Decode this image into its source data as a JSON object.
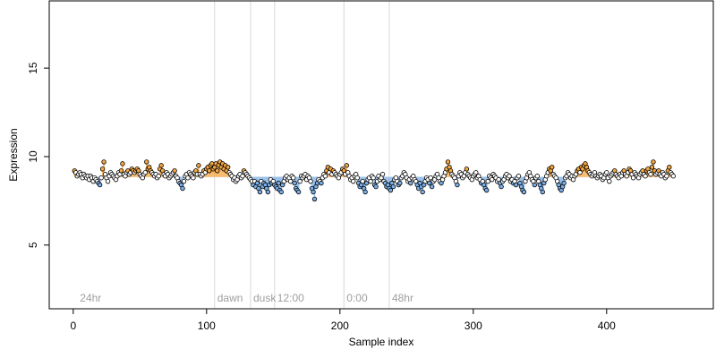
{
  "chart_data": {
    "type": "scatter",
    "xlabel": "Sample index",
    "ylabel": "Expression",
    "xlim": [
      -18,
      480
    ],
    "ylim": [
      1.4,
      18.8
    ],
    "x_ticks": [
      0,
      100,
      200,
      300,
      400
    ],
    "y_ticks": [
      5,
      10,
      15
    ],
    "baseline": 8.85,
    "colors": {
      "above": "#f5a742",
      "below": "#7aaee6",
      "neutral": "#ffffff",
      "point_stroke": "#000000",
      "vline": "#d8d8d8",
      "annotation": "#9e9e9e"
    },
    "annotations": [
      {
        "label": "24hr",
        "x": 3,
        "line": false
      },
      {
        "label": "dawn",
        "x": 106,
        "line": true
      },
      {
        "label": "dusk",
        "x": 133,
        "line": true
      },
      {
        "label": "12:00",
        "x": 151,
        "line": true
      },
      {
        "label": "0:00",
        "x": 203,
        "line": true
      },
      {
        "label": "48hr",
        "x": 237,
        "line": true
      }
    ],
    "series": [
      {
        "x_start": 1,
        "values": [
          9.2,
          9.1,
          8.9,
          9.0,
          9.1,
          9.0,
          8.8,
          9.0,
          8.9,
          8.8,
          8.9,
          8.7,
          8.9,
          8.8,
          8.6,
          8.8,
          8.7,
          8.6,
          8.5,
          8.4,
          8.8,
          9.3,
          9.7,
          9.0,
          8.8,
          8.6,
          8.9,
          9.1,
          9.0,
          8.9,
          8.8,
          8.7,
          8.9,
          9.1,
          9.0,
          9.2,
          9.6,
          9.0,
          8.9,
          9.1,
          9.2,
          9.0,
          9.1,
          9.3,
          9.2,
          9.1,
          9.2,
          9.3,
          9.2,
          9.0,
          8.9,
          8.8,
          9.0,
          9.1,
          9.7,
          9.3,
          9.4,
          9.2,
          9.1,
          9.0,
          8.9,
          9.0,
          8.8,
          8.9,
          9.3,
          9.5,
          9.2,
          9.0,
          8.9,
          9.1,
          9.0,
          8.8,
          8.9,
          9.0,
          9.1,
          9.2,
          8.9,
          8.8,
          8.6,
          8.5,
          8.4,
          8.2,
          8.6,
          8.9,
          9.0,
          8.8,
          9.1,
          9.0,
          8.9,
          8.8,
          9.1,
          9.2,
          9.0,
          9.5,
          9.0,
          8.9,
          9.0,
          9.2,
          9.1,
          9.3,
          9.4,
          9.2,
          9.5,
          9.6,
          9.3,
          9.4,
          9.6,
          9.2,
          9.5,
          9.7,
          9.4,
          9.6,
          9.3,
          9.5,
          9.2,
          9.4,
          9.1,
          9.0,
          8.9,
          8.7,
          8.8,
          8.6,
          8.7,
          8.9,
          9.0,
          8.8,
          8.9,
          9.2,
          9.1,
          9.0,
          8.9,
          8.8,
          8.7,
          8.6,
          8.4,
          8.6,
          8.3,
          8.5,
          8.2,
          8.0,
          8.6,
          8.3,
          8.5,
          8.4,
          8.2,
          8.0,
          8.4,
          8.7,
          8.5,
          8.6,
          8.4,
          8.3,
          8.2,
          8.5,
          8.1,
          8.0,
          8.4,
          8.6,
          8.8,
          8.9,
          8.7,
          8.8,
          8.6,
          8.9,
          8.8,
          8.5,
          8.2,
          8.1,
          8.0,
          8.6,
          8.9,
          8.8,
          8.9,
          9.0,
          8.7,
          8.9,
          8.8,
          8.6,
          8.2,
          8.0,
          7.6,
          8.3,
          8.5,
          8.7,
          8.6,
          8.5,
          8.8,
          9.0,
          8.9,
          9.2,
          9.4,
          9.1,
          9.3,
          9.0,
          9.2,
          9.1,
          9.0,
          8.9,
          8.8,
          9.0,
          9.1,
          9.3,
          9.2,
          9.0,
          9.5,
          9.1,
          8.9,
          8.7,
          8.8,
          8.6,
          8.9,
          9.0,
          8.8,
          8.5,
          8.3,
          8.4,
          8.6,
          8.2,
          8.0,
          8.5,
          8.7,
          8.8,
          8.6,
          8.9,
          8.8,
          8.4,
          8.3,
          8.6,
          8.9,
          8.7,
          8.8,
          9.0,
          8.6,
          8.5,
          8.3,
          8.4,
          8.2,
          8.1,
          8.5,
          8.3,
          8.7,
          8.8,
          8.6,
          8.4,
          8.5,
          8.8,
          8.9,
          9.1,
          9.0,
          8.8,
          8.6,
          8.7,
          8.5,
          8.8,
          8.9,
          8.7,
          8.6,
          8.4,
          8.2,
          8.5,
          8.3,
          8.0,
          8.4,
          8.6,
          8.8,
          8.7,
          8.5,
          8.8,
          8.3,
          8.6,
          8.7,
          8.9,
          9.0,
          8.8,
          8.6,
          8.5,
          8.7,
          8.9,
          9.1,
          9.3,
          9.7,
          9.4,
          9.2,
          9.0,
          8.9,
          8.8,
          8.6,
          8.4,
          8.9,
          9.1,
          9.0,
          8.8,
          8.9,
          9.1,
          9.3,
          9.0,
          8.9,
          8.8,
          8.7,
          8.9,
          9.0,
          9.1,
          8.8,
          8.9,
          8.7,
          8.5,
          8.6,
          8.4,
          8.2,
          8.1,
          8.6,
          8.9,
          8.8,
          8.7,
          9.0,
          8.9,
          8.8,
          8.6,
          8.7,
          8.5,
          8.3,
          8.6,
          8.7,
          8.9,
          9.0,
          8.8,
          8.9,
          8.6,
          8.7,
          8.5,
          8.6,
          8.4,
          8.8,
          8.9,
          8.5,
          8.3,
          8.1,
          8.0,
          8.6,
          8.8,
          9.0,
          9.1,
          8.9,
          8.7,
          8.6,
          8.4,
          8.8,
          8.9,
          8.6,
          8.4,
          8.2,
          8.0,
          8.5,
          8.7,
          8.9,
          9.1,
          9.3,
          9.2,
          9.4,
          9.0,
          8.9,
          8.8,
          8.6,
          8.4,
          8.2,
          8.1,
          8.3,
          8.5,
          8.8,
          8.9,
          9.1,
          9.0,
          8.8,
          8.9,
          8.7,
          8.9,
          9.0,
          9.2,
          9.3,
          9.1,
          9.4,
          9.3,
          9.5,
          9.6,
          9.4,
          9.2,
          9.1,
          9.0,
          8.9,
          9.0,
          9.1,
          8.9,
          8.8,
          8.9,
          9.0,
          8.9,
          8.7,
          8.8,
          9.0,
          9.1,
          8.8,
          8.6,
          8.9,
          9.0,
          9.1,
          9.2,
          9.0,
          8.9,
          8.8,
          9.0,
          8.9,
          9.1,
          9.2,
          9.0,
          8.9,
          9.1,
          9.3,
          9.2,
          9.0,
          8.8,
          9.1,
          9.0,
          8.9,
          8.8,
          9.0,
          9.1,
          9.2,
          9.0,
          8.9,
          9.2,
          9.3,
          9.1,
          9.0,
          9.4,
          9.7,
          9.2,
          9.0,
          9.1,
          9.2,
          9.0,
          8.9,
          9.1,
          9.0,
          8.8,
          8.9,
          9.2,
          9.4,
          9.1,
          9.0,
          8.9
        ]
      }
    ]
  }
}
